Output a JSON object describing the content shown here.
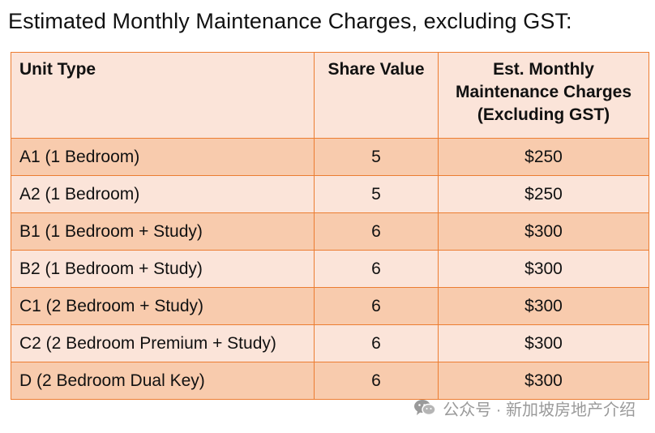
{
  "heading": "Estimated Monthly Maintenance Charges, excluding GST:",
  "table": {
    "headers": {
      "unit_type": "Unit Type",
      "share_value": "Share Value",
      "charges_line1": "Est. Monthly",
      "charges_line2": "Maintenance Charges",
      "charges_line3": "(Excluding GST)"
    },
    "rows": [
      {
        "unit": "A1 (1 Bedroom)",
        "share": "5",
        "charge": "$250"
      },
      {
        "unit": "A2 (1 Bedroom)",
        "share": "5",
        "charge": "$250"
      },
      {
        "unit": "B1 (1 Bedroom + Study)",
        "share": "6",
        "charge": "$300"
      },
      {
        "unit": "B2 (1 Bedroom + Study)",
        "share": "6",
        "charge": "$300"
      },
      {
        "unit": "C1 (2 Bedroom + Study)",
        "share": "6",
        "charge": "$300"
      },
      {
        "unit": "C2 (2 Bedroom Premium + Study)",
        "share": "6",
        "charge": "$300"
      },
      {
        "unit": "D (2 Bedroom Dual Key)",
        "share": "6",
        "charge": "$300"
      }
    ]
  },
  "watermark": {
    "icon": "wechat-icon",
    "text": "公众号 · 新加坡房地产介绍"
  },
  "colors": {
    "border": "#ec7d31",
    "row_dark": "#f8cbad",
    "row_light": "#fbe4d9",
    "watermark": "#9a9a9a"
  }
}
